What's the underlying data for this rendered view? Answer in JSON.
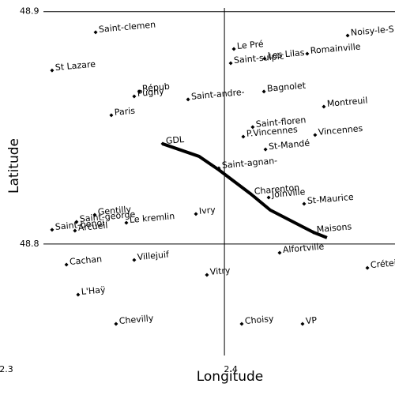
{
  "chart_data": {
    "type": "scatter",
    "x_label": "Longitude",
    "y_label": "Latitude",
    "xlim": [
      2.3,
      2.476
    ],
    "ylim": [
      48.735,
      48.905
    ],
    "xticks": [
      2.3,
      2.4
    ],
    "yticks": [
      48.8,
      48.9
    ],
    "grid": true,
    "color": "#000000",
    "labels": [
      "Saint-clemen",
      "Le Pré",
      "Noisy-le-S",
      "Romainville",
      "Les Lilas",
      "Saint-sulpic",
      "St Lazare",
      "Répub",
      "Pugny",
      "Saint-andre-",
      "Bagnolet",
      "Montreuil",
      "Paris",
      "Saint-floren",
      "P.Vincennes",
      "Vincennes",
      "St-Mandé",
      "GDL",
      "Saint-agnan-",
      "Charenton",
      "Joinville",
      "St-Maurice",
      "Ivry",
      "Gentilly",
      "Saint-george",
      "Le kremlin",
      "Saint-benoi",
      "Arcueil",
      "Maisons",
      "Alfortville",
      "Créteil",
      "Cachan",
      "Villejuif",
      "Vitry",
      "L'Haÿ",
      "Chevilly",
      "Choisy",
      "VP"
    ],
    "x": [
      2.3426,
      2.4042,
      2.4549,
      2.4369,
      2.4179,
      2.4028,
      2.3232,
      2.362,
      2.3598,
      2.3838,
      2.4176,
      2.4443,
      2.3496,
      2.4126,
      2.4084,
      2.4404,
      2.4183,
      2.3725,
      2.3975,
      2.4119,
      2.4197,
      2.4355,
      2.3873,
      2.3422,
      2.3341,
      2.3563,
      2.3232,
      2.3334,
      2.4397,
      2.4246,
      2.4637,
      2.3296,
      2.3598,
      2.3922,
      2.3348,
      2.3517,
      2.4077,
      2.4348
    ],
    "values": [
      48.8911,
      48.8839,
      48.8897,
      48.8819,
      48.8798,
      48.8778,
      48.8747,
      48.8656,
      48.8635,
      48.8622,
      48.8656,
      48.8591,
      48.8554,
      48.8503,
      48.8462,
      48.8469,
      48.8407,
      48.8431,
      48.8326,
      48.8214,
      48.82,
      48.8173,
      48.8129,
      48.8125,
      48.8095,
      48.8091,
      48.8061,
      48.8057,
      48.805,
      48.7962,
      48.7897,
      48.7911,
      48.7931,
      48.7867,
      48.7782,
      48.7656,
      48.7656,
      48.7656
    ],
    "route": {
      "color": "#000000",
      "x": [
        2.3725,
        2.3887,
        2.3975,
        2.4119,
        2.4204,
        2.4397,
        2.4457
      ],
      "values": [
        48.8431,
        48.8377,
        48.8319,
        48.8214,
        48.8146,
        48.805,
        48.8027
      ]
    }
  }
}
